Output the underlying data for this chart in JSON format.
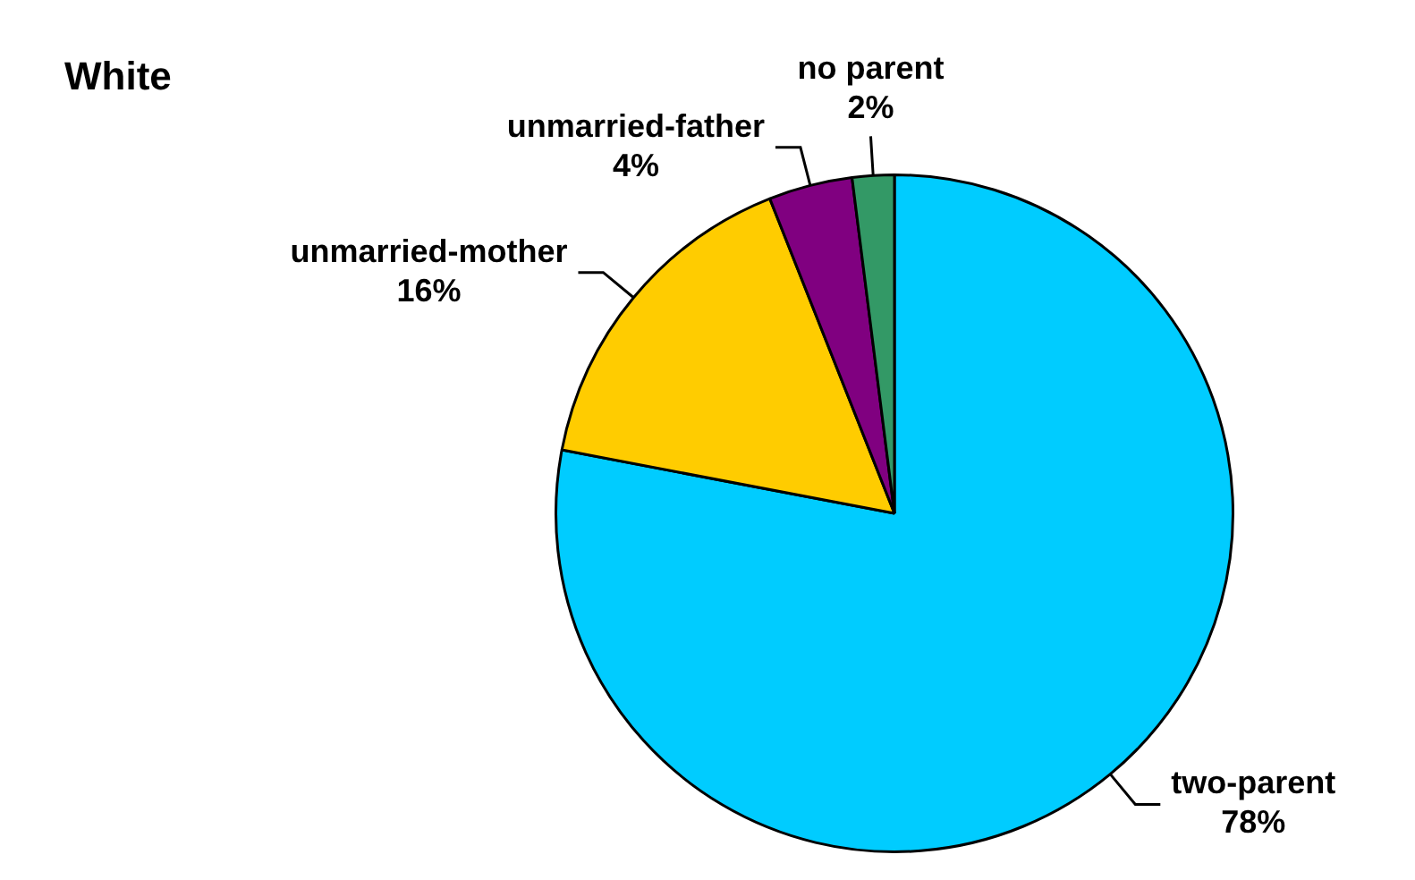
{
  "chart_data": {
    "type": "pie",
    "title": "White",
    "categories": [
      "two-parent",
      "unmarried-mother",
      "unmarried-father",
      "no parent"
    ],
    "values": [
      78,
      16,
      4,
      2
    ],
    "value_labels": [
      "78%",
      "16%",
      "4%",
      "2%"
    ],
    "colors": [
      "#00ccff",
      "#ffcc00",
      "#800080",
      "#339966"
    ],
    "legend": false
  }
}
